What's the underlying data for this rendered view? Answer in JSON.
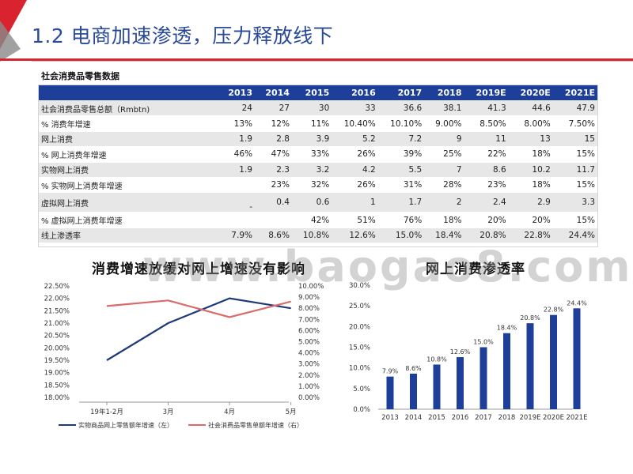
{
  "slide": {
    "title": "1.2 电商加速渗透，压力释放线下",
    "watermark": "www.baogao8.com"
  },
  "table": {
    "caption": "社会消费品零售数据",
    "columns": [
      "",
      "2013",
      "2014",
      "2015",
      "2016",
      "2017",
      "2018",
      "2019E",
      "2020E",
      "2021E"
    ],
    "rows": [
      {
        "label": "社会消费品零售总额（Rmbtn)",
        "values": [
          "24",
          "27",
          "30",
          "33",
          "36.6",
          "38.1",
          "41.3",
          "44.6",
          "47.9"
        ]
      },
      {
        "label": "% 消费年增速",
        "values": [
          "13%",
          "12%",
          "11%",
          "10.40%",
          "10.10%",
          "9.00%",
          "8.50%",
          "8.00%",
          "7.50%"
        ]
      },
      {
        "label": "网上消费",
        "values": [
          "1.9",
          "2.8",
          "3.9",
          "5.2",
          "7.2",
          "9",
          "11",
          "13",
          "15"
        ]
      },
      {
        "label": "% 网上消费年增速",
        "values": [
          "46%",
          "47%",
          "33%",
          "26%",
          "39%",
          "25%",
          "22%",
          "18%",
          "15%"
        ]
      },
      {
        "label": "实物网上消费",
        "values": [
          "1.9",
          "2.3",
          "3.2",
          "4.2",
          "5.5",
          "7",
          "8.6",
          "10.2",
          "11.7"
        ]
      },
      {
        "label": "% 实物网上消费年增速",
        "values": [
          "",
          "23%",
          "32%",
          "26%",
          "31%",
          "28%",
          "23%",
          "18%",
          "15%"
        ]
      },
      {
        "label": "虚拟网上消费",
        "values": [
          "-",
          "0.4",
          "0.6",
          "1",
          "1.7",
          "2",
          "2.4",
          "2.9",
          "3.3"
        ]
      },
      {
        "label": "% 虚拟网上消费年增速",
        "values": [
          "",
          "",
          "42%",
          "51%",
          "76%",
          "18%",
          "20%",
          "20%",
          "15%"
        ]
      },
      {
        "label": "线上渗透率",
        "values": [
          "7.9%",
          "8.6%",
          "10.8%",
          "12.6%",
          "15.0%",
          "18.4%",
          "20.8%",
          "22.8%",
          "24.4%"
        ]
      }
    ]
  },
  "chart_data": [
    {
      "type": "line",
      "title": "消费增速放缓对网上增速没有影响",
      "categories": [
        "19年1-2月",
        "3月",
        "4月",
        "5月"
      ],
      "y_left": {
        "ticks": [
          "18.00%",
          "18.50%",
          "19.00%",
          "19.50%",
          "20.00%",
          "20.50%",
          "21.00%",
          "21.50%",
          "22.00%",
          "22.50%"
        ],
        "ylim": [
          18.0,
          22.5
        ]
      },
      "y_right": {
        "ticks": [
          "0.00%",
          "1.00%",
          "2.00%",
          "3.00%",
          "4.00%",
          "5.00%",
          "6.00%",
          "7.00%",
          "8.00%",
          "9.00%",
          "10.00%"
        ],
        "ylim": [
          0.0,
          10.0
        ]
      },
      "series": [
        {
          "name": "实物商品网上零售额年增速（左）",
          "axis": "left",
          "color": "#1f3a7a",
          "values": [
            19.5,
            21.0,
            22.0,
            21.6
          ]
        },
        {
          "name": "社会消费品零售单额年增速（右）",
          "axis": "right",
          "color": "#d96b6b",
          "values": [
            8.2,
            8.7,
            7.2,
            8.6
          ]
        }
      ]
    },
    {
      "type": "bar",
      "title": "网上消费渗透率",
      "categories": [
        "2013",
        "2014",
        "2015",
        "2016",
        "2017",
        "2018",
        "2019E",
        "2020E",
        "2021E"
      ],
      "values": [
        7.9,
        8.6,
        10.8,
        12.6,
        15.0,
        18.4,
        20.8,
        22.8,
        24.4
      ],
      "data_labels": [
        "7.9%",
        "8.6%",
        "10.8%",
        "12.6%",
        "15.0%",
        "18.4%",
        "20.8%",
        "22.8%",
        "24.4%"
      ],
      "ylim": [
        0,
        30
      ],
      "y_ticks": [
        "0.0%",
        "5.0%",
        "10.0%",
        "15.0%",
        "20.0%",
        "25.0%",
        "30.0%"
      ],
      "color": "#1d3f9a"
    }
  ]
}
